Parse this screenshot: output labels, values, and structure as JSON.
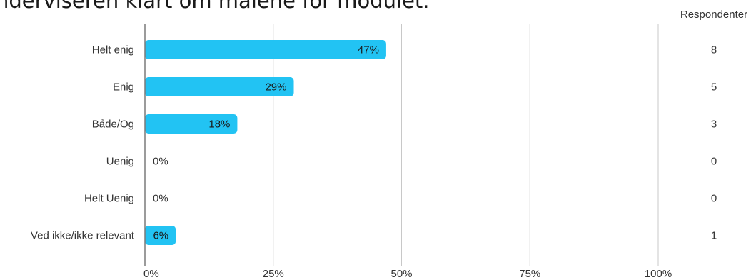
{
  "chart_data": {
    "type": "bar",
    "orientation": "horizontal",
    "title": "nderviseren klart om målene for modulet.",
    "categories": [
      "Helt enig",
      "Enig",
      "Både/Og",
      "Uenig",
      "Helt Uenig",
      "Ved ikke/ikke relevant"
    ],
    "values": [
      47,
      29,
      18,
      0,
      0,
      6
    ],
    "value_labels": [
      "47%",
      "29%",
      "18%",
      "0%",
      "0%",
      "6%"
    ],
    "respondents_header": "Respondenter",
    "respondents": [
      "8",
      "5",
      "3",
      "0",
      "0",
      "1"
    ],
    "x_ticks": [
      0,
      25,
      50,
      75,
      100
    ],
    "x_tick_labels": [
      "0%",
      "25%",
      "50%",
      "75%",
      "100%"
    ],
    "xlim": [
      0,
      100
    ],
    "grid": true,
    "colors": {
      "bar": "#22c3f3",
      "grid": "#c8c8c8",
      "axis": "#7a7a7a",
      "text": "#333333"
    }
  }
}
